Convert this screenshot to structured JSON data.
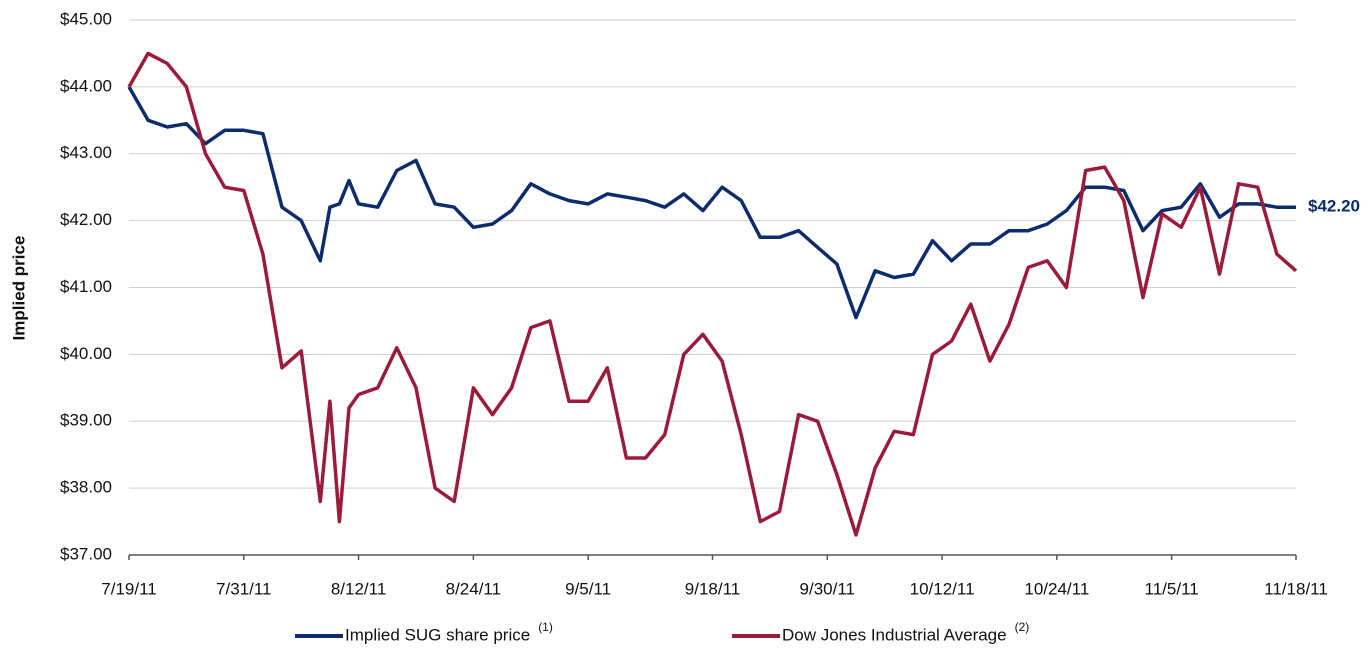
{
  "chart_data": {
    "type": "line",
    "y_axis_label": "Implied price",
    "x": [
      "7/19/11",
      "7/21/11",
      "7/23/11",
      "7/25/11",
      "7/27/11",
      "7/29/11",
      "7/31/11",
      "8/2/11",
      "8/4/11",
      "8/6/11",
      "8/8/11",
      "8/9/11",
      "8/10/11",
      "8/11/11",
      "8/12/11",
      "8/14/11",
      "8/16/11",
      "8/18/11",
      "8/20/11",
      "8/22/11",
      "8/24/11",
      "8/26/11",
      "8/28/11",
      "8/30/11",
      "9/1/11",
      "9/3/11",
      "9/5/11",
      "9/7/11",
      "9/9/11",
      "9/11/11",
      "9/13/11",
      "9/15/11",
      "9/17/11",
      "9/19/11",
      "9/21/11",
      "9/23/11",
      "9/25/11",
      "9/27/11",
      "9/29/11",
      "10/1/11",
      "10/3/11",
      "10/5/11",
      "10/7/11",
      "10/9/11",
      "10/11/11",
      "10/13/11",
      "10/15/11",
      "10/17/11",
      "10/19/11",
      "10/21/11",
      "10/23/11",
      "10/25/11",
      "10/27/11",
      "10/29/11",
      "10/31/11",
      "11/2/11",
      "11/4/11",
      "11/6/11",
      "11/8/11",
      "11/10/11",
      "11/12/11",
      "11/14/11",
      "11/16/11",
      "11/18/11"
    ],
    "series": [
      {
        "name": "Implied SUG share price",
        "note": "(1)",
        "color": "#0d2c6c",
        "values": [
          44.0,
          43.5,
          43.4,
          43.45,
          43.15,
          43.35,
          43.35,
          43.3,
          42.2,
          42.0,
          41.4,
          42.2,
          42.25,
          42.6,
          42.25,
          42.2,
          42.75,
          42.9,
          42.25,
          42.2,
          41.9,
          41.95,
          42.15,
          42.55,
          42.4,
          42.3,
          42.25,
          42.4,
          42.35,
          42.3,
          42.2,
          42.4,
          42.15,
          42.5,
          42.3,
          41.75,
          41.75,
          41.85,
          41.6,
          41.35,
          40.55,
          41.25,
          41.15,
          41.2,
          41.7,
          41.4,
          41.65,
          41.65,
          41.85,
          41.85,
          41.95,
          42.15,
          42.5,
          42.5,
          42.45,
          41.85,
          42.15,
          42.2,
          42.55,
          42.05,
          42.25,
          42.25,
          42.2,
          42.2
        ]
      },
      {
        "name": "Dow Jones Industrial Average",
        "note": "(2)",
        "color": "#9b1b3a",
        "values": [
          44.0,
          44.5,
          44.35,
          44.0,
          43.0,
          42.5,
          42.45,
          41.5,
          39.8,
          40.05,
          37.8,
          39.3,
          37.5,
          39.2,
          39.4,
          39.5,
          40.1,
          39.5,
          38.0,
          37.8,
          39.5,
          39.1,
          39.5,
          40.4,
          40.5,
          39.3,
          39.3,
          39.8,
          38.45,
          38.45,
          38.8,
          40.0,
          40.3,
          39.9,
          38.8,
          37.5,
          37.65,
          39.1,
          39.0,
          38.2,
          37.3,
          38.3,
          38.85,
          38.8,
          40.0,
          40.2,
          40.75,
          39.9,
          40.45,
          41.3,
          41.4,
          41.0,
          42.75,
          42.8,
          42.3,
          40.85,
          42.1,
          41.9,
          42.5,
          41.2,
          42.55,
          42.5,
          41.5,
          41.25
        ]
      }
    ],
    "end_label": {
      "series": 0,
      "text": "$42.20",
      "value": 42.2
    },
    "xlim": [
      "7/19/11",
      "11/18/11"
    ],
    "xticks": [
      "7/19/11",
      "7/31/11",
      "8/12/11",
      "8/24/11",
      "9/5/11",
      "9/18/11",
      "9/30/11",
      "10/12/11",
      "10/24/11",
      "11/5/11",
      "11/18/11"
    ],
    "ylim": [
      37,
      45
    ],
    "yticks": [
      {
        "value": 37,
        "label": "$37.00"
      },
      {
        "value": 38,
        "label": "$38.00"
      },
      {
        "value": 39,
        "label": "$39.00"
      },
      {
        "value": 40,
        "label": "$40.00"
      },
      {
        "value": 41,
        "label": "$41.00"
      },
      {
        "value": 42,
        "label": "$42.00"
      },
      {
        "value": 43,
        "label": "$43.00"
      },
      {
        "value": 44,
        "label": "$44.00"
      },
      {
        "value": 45,
        "label": "$45.00"
      }
    ],
    "grid": true,
    "legend": "bottom"
  }
}
